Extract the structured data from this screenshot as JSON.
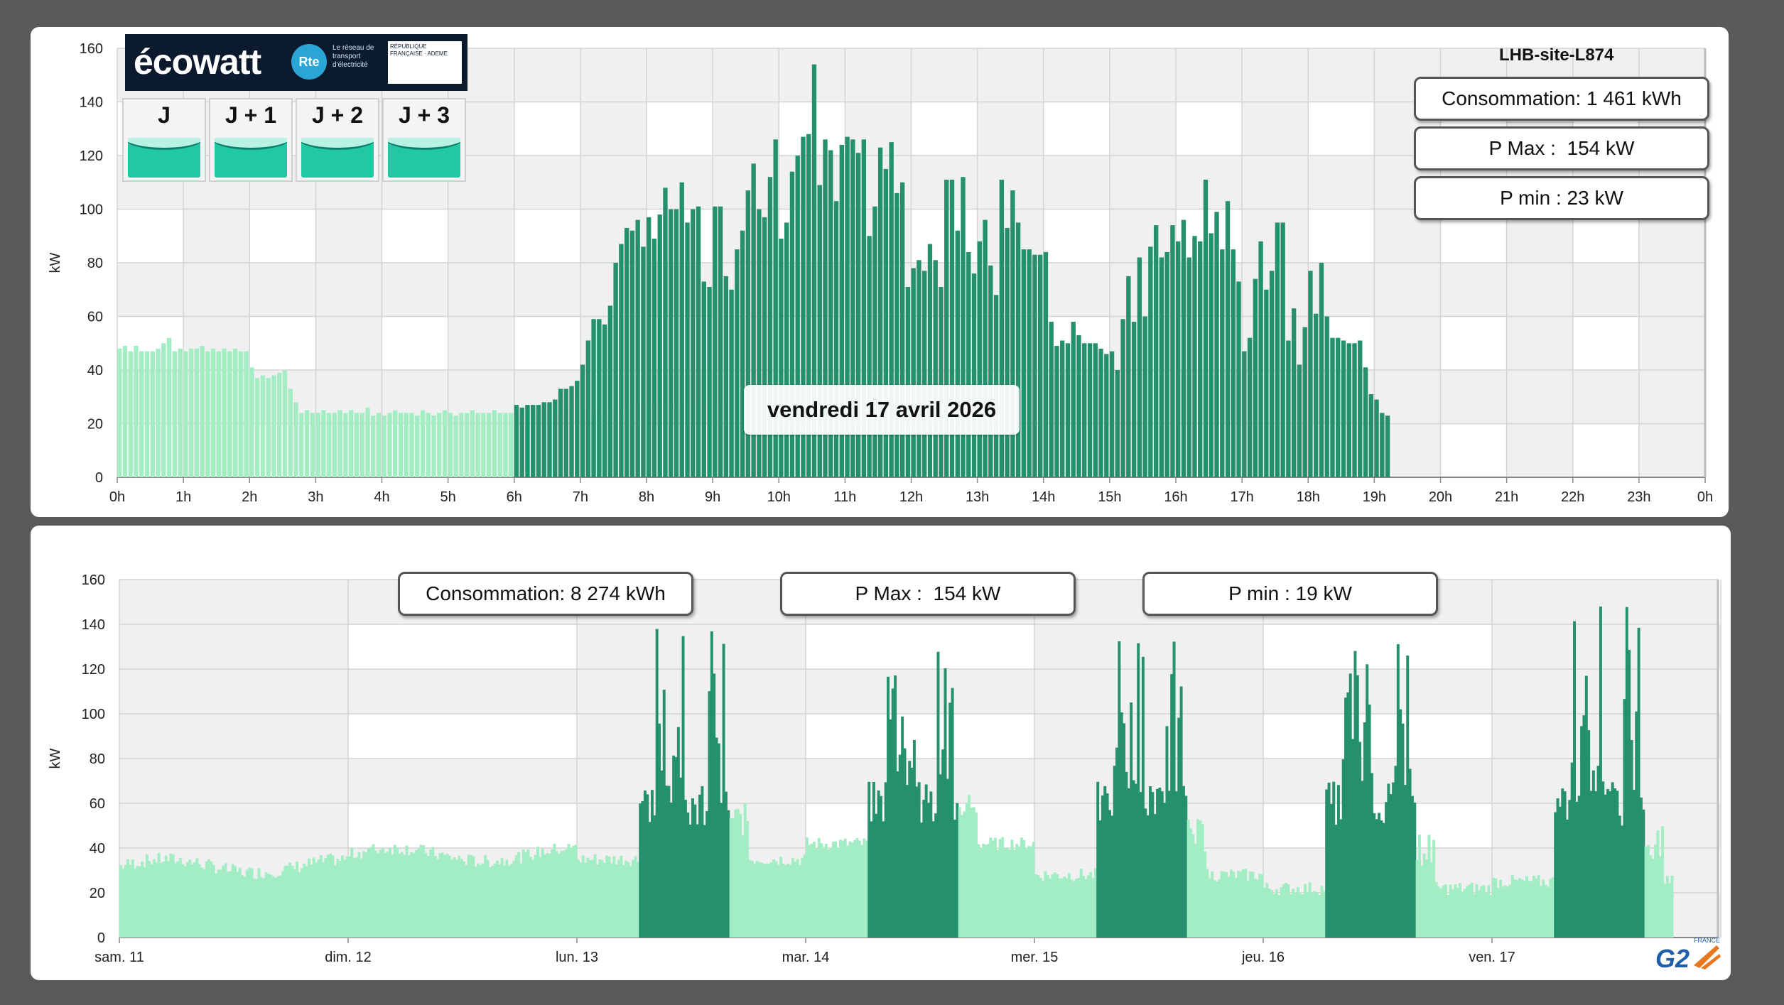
{
  "colors": {
    "frame": "#5a5a5a",
    "panel": "#ffffff",
    "past": "#a3edc5",
    "today": "#25906e",
    "band_light": "#f0f0f0",
    "grid": "#d4d4d4"
  },
  "ecowatt": {
    "logo_text": "écowatt",
    "rte_text": "Le réseau de transport d'électricité",
    "rte_abbrev": "Rte",
    "badge_text": "RÉPUBLIQUE FRANÇAISE · ADEME",
    "days": [
      {
        "label": "J",
        "signal": "green"
      },
      {
        "label": "J + 1",
        "signal": "green"
      },
      {
        "label": "J + 2",
        "signal": "green"
      },
      {
        "label": "J + 3",
        "signal": "green"
      }
    ]
  },
  "top": {
    "site": "LHB-site-L874",
    "stats": {
      "consommation": "Consommation: 1 461 kWh",
      "pmax": "P Max :  154 kW",
      "pmin": "P min : 23 kW"
    },
    "date_label": "vendredi 17 avril 2026"
  },
  "bottom": {
    "stats": {
      "consommation": "Consommation: 8 274 kWh",
      "pmax": "P Max :  154 kW",
      "pmin": "P min : 19 kW"
    }
  },
  "logo": {
    "text": "G2",
    "country": "FRANCE"
  },
  "chart_data": [
    {
      "type": "bar",
      "ylabel": "kW",
      "ylim": [
        0,
        160
      ],
      "yticks": [
        0,
        20,
        40,
        60,
        80,
        100,
        120,
        140,
        160
      ],
      "xlim": [
        0,
        24
      ],
      "xtick_labels": [
        "0h",
        "1h",
        "2h",
        "3h",
        "4h",
        "5h",
        "6h",
        "7h",
        "8h",
        "9h",
        "10h",
        "11h",
        "12h",
        "13h",
        "14h",
        "15h",
        "16h",
        "17h",
        "18h",
        "19h",
        "20h",
        "21h",
        "22h",
        "23h",
        "0h"
      ],
      "interval_minutes": 5,
      "series": [
        {
          "values_until_6h": [
            48,
            49,
            47,
            49,
            47,
            47,
            47,
            48,
            50,
            52,
            47,
            48,
            47,
            48,
            48,
            49,
            47,
            48,
            47,
            48,
            47,
            48,
            47,
            47,
            41,
            37,
            38,
            37,
            38,
            39,
            40,
            33,
            28,
            24,
            25,
            24,
            24,
            25,
            24,
            24,
            25,
            24,
            25,
            24,
            24,
            26,
            23,
            24,
            23,
            24,
            25,
            24,
            24,
            24,
            23,
            25,
            24,
            23,
            24,
            25,
            24,
            23,
            24,
            24,
            25,
            24,
            24,
            24,
            25,
            24,
            24,
            24,
            23,
            25,
            24,
            24,
            26,
            24,
            25,
            25,
            24,
            26,
            26,
            30,
            25,
            26,
            24,
            25,
            24,
            25,
            26,
            24,
            26,
            27,
            26,
            28,
            26,
            28,
            27,
            28,
            27,
            28,
            27,
            28,
            27,
            27,
            27,
            28,
            26,
            27
          ]
        },
        {
          "values_from_6h": [
            27,
            26,
            27,
            27,
            27,
            28,
            28,
            29,
            33,
            33,
            34,
            36,
            42,
            51,
            59,
            59,
            57,
            64,
            80,
            87,
            93,
            92,
            96,
            86,
            97,
            89,
            98,
            108,
            100,
            100,
            110,
            95,
            100,
            101,
            73,
            71,
            101,
            101,
            75,
            70,
            85,
            92,
            107,
            117,
            100,
            97,
            112,
            126,
            89,
            95,
            114,
            120,
            127,
            128,
            154,
            109,
            126,
            122,
            103,
            124,
            127,
            126,
            121,
            126,
            90,
            101,
            123,
            115,
            125,
            106,
            110,
            71,
            78,
            81,
            77,
            87,
            81,
            71,
            111,
            111,
            92,
            112,
            84,
            76,
            88,
            96,
            79,
            68,
            111,
            93,
            107,
            95,
            85,
            85,
            83,
            83,
            84,
            58,
            49,
            51,
            50,
            58,
            53,
            50,
            50,
            50,
            48,
            46,
            47,
            40,
            59,
            75,
            58,
            82,
            60,
            86,
            94,
            82,
            84,
            94,
            88,
            96,
            82,
            90,
            88,
            111,
            91,
            99,
            85,
            103,
            85,
            73,
            47,
            52,
            74,
            88,
            70,
            77,
            95,
            95,
            51,
            63,
            42,
            56,
            77,
            61,
            80,
            60,
            52,
            52,
            51,
            50,
            50,
            51,
            41,
            31,
            29,
            24,
            23
          ]
        }
      ]
    },
    {
      "type": "area",
      "ylabel": "kW",
      "ylim": [
        0,
        160
      ],
      "yticks": [
        0,
        20,
        40,
        60,
        80,
        100,
        120,
        140,
        160
      ],
      "x_categories": [
        "sam. 11",
        "dim. 12",
        "lun. 13",
        "mar. 14",
        "mer. 15",
        "jeu. 16",
        "ven. 17"
      ],
      "series": [
        {
          "name": "",
          "daily_profile": [
            {
              "day": "sam. 11",
              "base": 32,
              "work": false
            },
            {
              "day": "dim. 12",
              "base": 37,
              "work": false
            },
            {
              "day": "lun. 13",
              "base": 35,
              "work": true,
              "peak": 146
            },
            {
              "day": "mar. 14",
              "base": 42,
              "work": true,
              "peak": 130
            },
            {
              "day": "mer. 15",
              "base": 28,
              "work": true,
              "peak": 135
            },
            {
              "day": "jeu. 16",
              "base": 22,
              "work": true,
              "peak": 135
            },
            {
              "day": "ven. 17",
              "base": 25,
              "work": true,
              "peak": 154
            }
          ]
        }
      ]
    }
  ]
}
